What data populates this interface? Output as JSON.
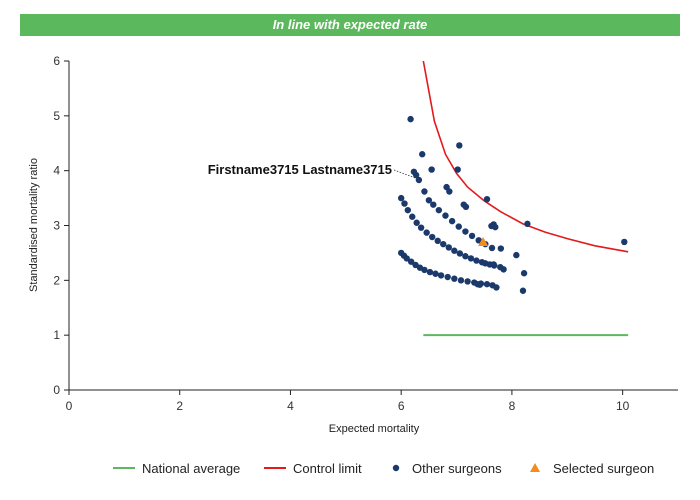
{
  "banner": {
    "text": "In line with expected rate",
    "color": "#5cb85c"
  },
  "chart_data": {
    "type": "scatter",
    "title": "In line with expected rate",
    "xlabel": "Expected mortality",
    "ylabel": "Standardised mortality ratio",
    "xlim": [
      0,
      11
    ],
    "ylim": [
      0,
      6
    ],
    "xticks": [
      "0",
      "2",
      "4",
      "6",
      "8",
      "10"
    ],
    "yticks": [
      "0",
      "1",
      "2",
      "3",
      "4",
      "5",
      "6"
    ],
    "grid": false,
    "legend_position": "bottom",
    "annotation": {
      "text": "Firstname3715 Lastname3715",
      "points_to": [
        6.3,
        3.85
      ]
    },
    "series": [
      {
        "name": "National average",
        "kind": "line",
        "color": "#5cb85c",
        "x": [
          6.4,
          10.1
        ],
        "y": [
          1.0,
          1.0
        ]
      },
      {
        "name": "Control limit",
        "kind": "line",
        "color": "#e31a1c",
        "x": [
          6.4,
          6.6,
          6.8,
          7.0,
          7.2,
          7.5,
          7.8,
          8.2,
          8.6,
          9.0,
          9.5,
          10.1
        ],
        "y": [
          6.0,
          4.9,
          4.3,
          3.95,
          3.7,
          3.45,
          3.25,
          3.03,
          2.88,
          2.76,
          2.63,
          2.52
        ]
      },
      {
        "name": "Other surgeons",
        "kind": "scatter",
        "color": "#1b3a6b",
        "x": [
          6.17,
          6.38,
          7.05,
          6.23,
          6.27,
          6.32,
          6.42,
          6.55,
          6.82,
          6.87,
          7.02,
          7.13,
          7.17,
          7.55,
          7.63,
          7.67,
          7.7,
          7.8,
          8.08,
          8.2,
          8.22,
          8.28,
          10.03,
          6.0,
          6.05,
          6.1,
          6.18,
          6.26,
          6.34,
          6.42,
          6.52,
          6.62,
          6.72,
          6.84,
          6.96,
          7.08,
          7.2,
          7.32,
          7.44,
          7.55,
          7.65,
          7.72,
          6.0,
          6.06,
          6.12,
          6.2,
          6.28,
          6.36,
          6.46,
          6.56,
          6.66,
          6.76,
          6.86,
          6.96,
          7.06,
          7.16,
          7.26,
          7.36,
          7.46,
          7.52,
          7.6,
          7.68,
          7.79,
          7.85,
          6.5,
          6.58,
          6.68,
          6.8,
          6.92,
          7.04,
          7.16,
          7.28,
          7.4,
          7.52,
          7.64,
          7.38,
          7.42,
          7.67
        ],
        "y": [
          4.94,
          4.3,
          4.46,
          3.98,
          3.92,
          3.83,
          3.62,
          4.02,
          3.7,
          3.62,
          4.02,
          3.38,
          3.34,
          3.48,
          2.99,
          3.02,
          2.97,
          2.58,
          2.46,
          1.81,
          2.13,
          3.03,
          2.7,
          2.5,
          2.45,
          2.4,
          2.34,
          2.28,
          2.23,
          2.19,
          2.15,
          2.12,
          2.09,
          2.06,
          2.03,
          2.0,
          1.98,
          1.96,
          1.94,
          1.93,
          1.91,
          1.87,
          3.5,
          3.4,
          3.28,
          3.16,
          3.05,
          2.96,
          2.87,
          2.79,
          2.72,
          2.66,
          2.6,
          2.54,
          2.49,
          2.44,
          2.4,
          2.36,
          2.33,
          2.31,
          2.29,
          2.27,
          2.24,
          2.2,
          3.46,
          3.38,
          3.28,
          3.18,
          3.08,
          2.98,
          2.89,
          2.81,
          2.73,
          2.66,
          2.59,
          1.93,
          1.92,
          2.29
        ]
      },
      {
        "name": "Selected surgeon",
        "kind": "scatter",
        "marker": "triangle",
        "color": "#f28c1e",
        "x": [
          7.48
        ],
        "y": [
          2.7
        ]
      }
    ]
  }
}
